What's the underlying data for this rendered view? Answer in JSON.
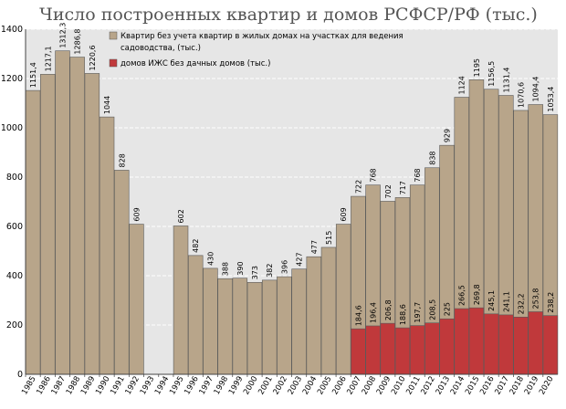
{
  "chart_data": {
    "type": "bar",
    "stacked": true,
    "title": "Число построенных квартир и домов РСФСР/РФ (тыс.)",
    "xlabel": "",
    "ylabel": "",
    "ylim": [
      0,
      1400
    ],
    "yticks": [
      "0",
      "200",
      "400",
      "600",
      "800",
      "1000",
      "1200",
      "1400"
    ],
    "grid": true,
    "legend_position": "top-right",
    "categories": [
      "1985",
      "1986",
      "1987",
      "1988",
      "1989",
      "1990",
      "1991",
      "1992",
      "1993",
      "1994",
      "1995",
      "1996",
      "1997",
      "1998",
      "1999",
      "2000",
      "2001",
      "2002",
      "2003",
      "2004",
      "2005",
      "2006",
      "2007",
      "2008",
      "2009",
      "2010",
      "2011",
      "2012",
      "2013",
      "2014",
      "2015",
      "2016",
      "2017",
      "2018",
      "2019",
      "2020"
    ],
    "series": [
      {
        "name": "Квартир без учета квартир в жилых домах на участках для ведения садоводства, (тыс.)",
        "color": "#b8a58a",
        "totals": [
          1151.4,
          1217.1,
          1312.3,
          1286.8,
          1220.6,
          1044,
          828,
          609,
          null,
          null,
          602,
          482,
          430,
          388,
          390,
          373,
          382,
          396,
          427,
          477,
          515,
          609,
          722,
          768,
          702,
          717,
          768,
          838,
          929,
          1124,
          1195,
          1156.5,
          1131.4,
          1070.6,
          1094.4,
          1053.4
        ],
        "labels": [
          "1151,4",
          "1217,1",
          "1312,3",
          "1286,8",
          "1220,6",
          "1044",
          "828",
          "609",
          "",
          "",
          "602",
          "482",
          "430",
          "388",
          "390",
          "373",
          "382",
          "396",
          "427",
          "477",
          "515",
          "609",
          "722",
          "768",
          "702",
          "717",
          "768",
          "838",
          "929",
          "1124",
          "1195",
          "1156,5",
          "1131,4",
          "1070,6",
          "1094,4",
          "1053,4"
        ]
      },
      {
        "name": "домов ИЖС без дачных домов (тыс.)",
        "color": "#c0393b",
        "values": [
          null,
          null,
          null,
          null,
          null,
          null,
          null,
          null,
          null,
          null,
          null,
          null,
          null,
          null,
          null,
          null,
          null,
          null,
          null,
          null,
          null,
          null,
          184.6,
          196.4,
          206.8,
          188.6,
          197.7,
          208.5,
          225,
          266.5,
          269.8,
          245.1,
          241.1,
          232.2,
          253.8,
          238.2
        ],
        "labels": [
          "",
          "",
          "",
          "",
          "",
          "",
          "",
          "",
          "",
          "",
          "",
          "",
          "",
          "",
          "",
          "",
          "",
          "",
          "",
          "",
          "",
          "",
          "184,6",
          "196,4",
          "206,8",
          "188,6",
          "197,7",
          "208,5",
          "225",
          "266,5",
          "269,8",
          "245,1",
          "241,1",
          "232,2",
          "253,8",
          "238,2"
        ]
      }
    ]
  }
}
